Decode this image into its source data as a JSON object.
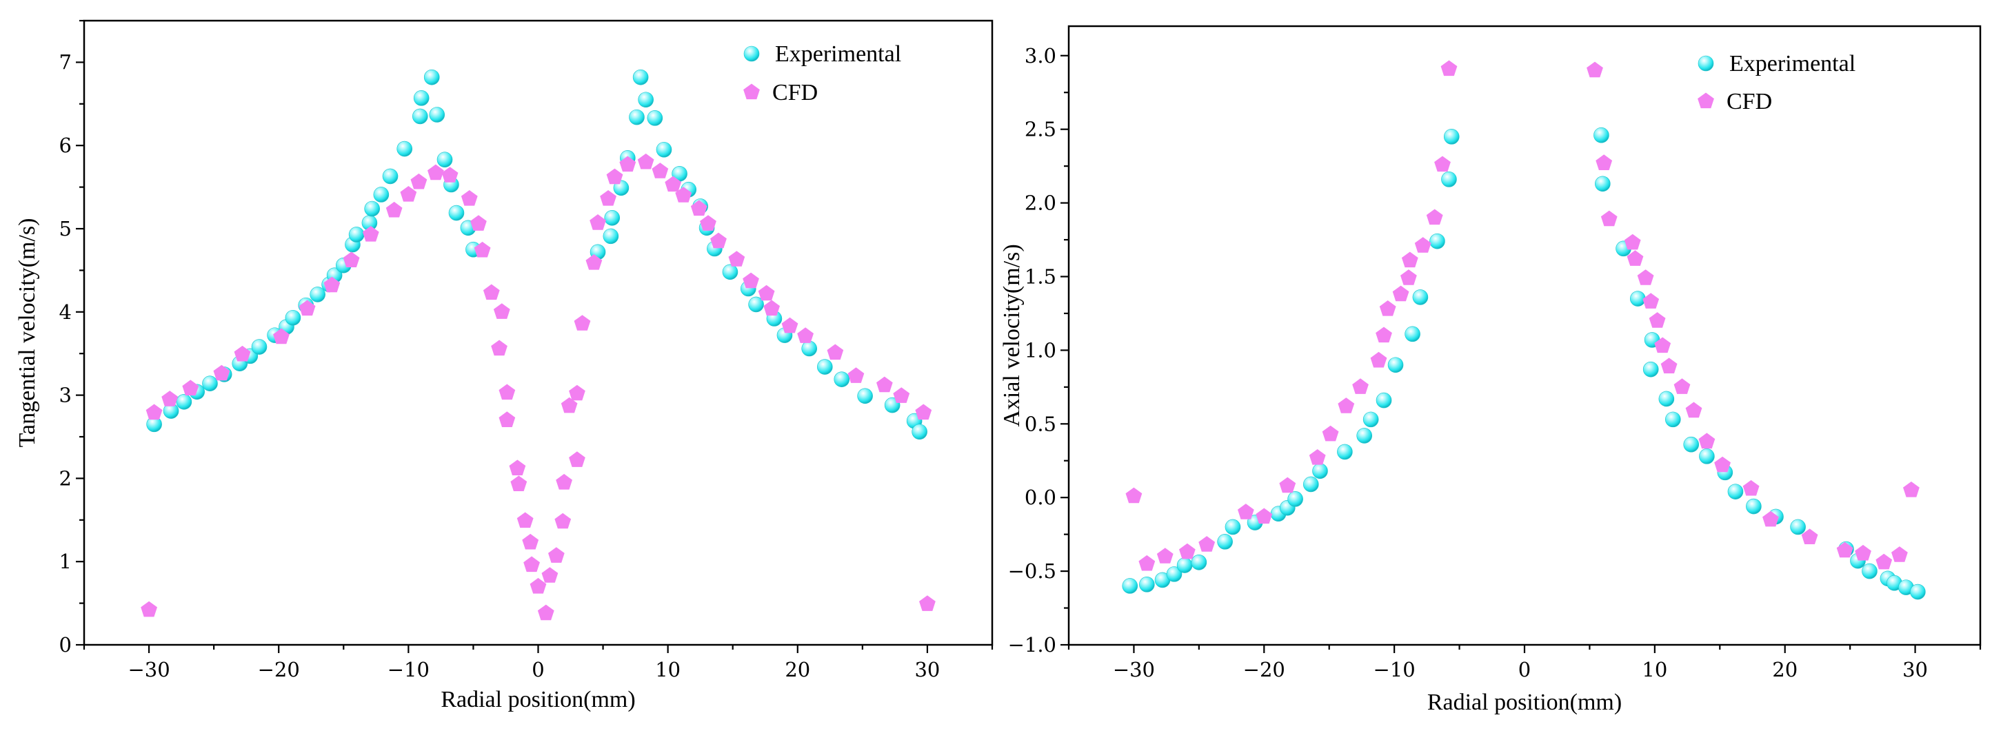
{
  "colors": {
    "experimental": "#29e6ee",
    "cfd": "#f27ff0",
    "axis": "#000000"
  },
  "chart_data": [
    {
      "type": "scatter",
      "xlabel": "Radial position(mm)",
      "ylabel": "Tangential velocity(m/s)",
      "xlim": [
        -35,
        35
      ],
      "ylim": [
        0,
        7.5
      ],
      "xticks": [
        -30,
        -20,
        -10,
        0,
        10,
        20,
        30
      ],
      "xtick_labels": [
        "−30",
        "−20",
        "−10",
        "0",
        "10",
        "20",
        "30"
      ],
      "yticks": [
        0,
        1,
        2,
        3,
        4,
        5,
        6,
        7
      ],
      "ytick_labels": [
        "0",
        "1",
        "2",
        "3",
        "4",
        "5",
        "6",
        "7"
      ],
      "legend_position": "top-right",
      "series": [
        {
          "name": "Experimental",
          "marker": "sphere",
          "points": [
            [
              -29.6,
              2.65
            ],
            [
              -28.3,
              2.81
            ],
            [
              -27.3,
              2.92
            ],
            [
              -26.3,
              3.04
            ],
            [
              -25.3,
              3.14
            ],
            [
              -24.2,
              3.25
            ],
            [
              -23.0,
              3.38
            ],
            [
              -22.2,
              3.47
            ],
            [
              -21.5,
              3.58
            ],
            [
              -20.3,
              3.72
            ],
            [
              -19.4,
              3.82
            ],
            [
              -18.9,
              3.93
            ],
            [
              -17.9,
              4.08
            ],
            [
              -17.0,
              4.21
            ],
            [
              -16.1,
              4.33
            ],
            [
              -15.7,
              4.44
            ],
            [
              -15.0,
              4.56
            ],
            [
              -14.3,
              4.81
            ],
            [
              -14.0,
              4.93
            ],
            [
              -13.0,
              5.07
            ],
            [
              -12.8,
              5.24
            ],
            [
              -12.1,
              5.41
            ],
            [
              -11.4,
              5.63
            ],
            [
              -10.3,
              5.96
            ],
            [
              -9.1,
              6.35
            ],
            [
              -9.0,
              6.57
            ],
            [
              -8.2,
              6.82
            ],
            [
              -7.8,
              6.37
            ],
            [
              -7.2,
              5.83
            ],
            [
              -6.7,
              5.53
            ],
            [
              -6.3,
              5.19
            ],
            [
              -5.4,
              5.01
            ],
            [
              -5.0,
              4.75
            ],
            [
              4.6,
              4.72
            ],
            [
              5.6,
              4.91
            ],
            [
              5.7,
              5.13
            ],
            [
              6.4,
              5.49
            ],
            [
              6.9,
              5.85
            ],
            [
              7.6,
              6.34
            ],
            [
              7.9,
              6.82
            ],
            [
              8.3,
              6.55
            ],
            [
              9.0,
              6.33
            ],
            [
              9.7,
              5.95
            ],
            [
              10.9,
              5.66
            ],
            [
              11.6,
              5.47
            ],
            [
              12.5,
              5.27
            ],
            [
              13.0,
              5.01
            ],
            [
              13.6,
              4.76
            ],
            [
              14.8,
              4.48
            ],
            [
              16.2,
              4.28
            ],
            [
              16.8,
              4.09
            ],
            [
              18.2,
              3.92
            ],
            [
              19.0,
              3.72
            ],
            [
              20.9,
              3.56
            ],
            [
              22.1,
              3.34
            ],
            [
              23.4,
              3.19
            ],
            [
              25.2,
              2.99
            ],
            [
              27.3,
              2.88
            ],
            [
              29.0,
              2.69
            ],
            [
              29.4,
              2.56
            ]
          ]
        },
        {
          "name": "CFD",
          "marker": "pentagon",
          "points": [
            [
              -30.0,
              0.42
            ],
            [
              -29.6,
              2.79
            ],
            [
              -28.4,
              2.95
            ],
            [
              -26.8,
              3.08
            ],
            [
              -24.4,
              3.26
            ],
            [
              -22.8,
              3.49
            ],
            [
              -19.8,
              3.7
            ],
            [
              -17.8,
              4.04
            ],
            [
              -15.9,
              4.32
            ],
            [
              -14.4,
              4.62
            ],
            [
              -12.9,
              4.93
            ],
            [
              -11.1,
              5.22
            ],
            [
              -10.0,
              5.41
            ],
            [
              -9.2,
              5.56
            ],
            [
              -7.9,
              5.67
            ],
            [
              -6.8,
              5.64
            ],
            [
              -5.3,
              5.36
            ],
            [
              -4.6,
              5.06
            ],
            [
              -4.3,
              4.74
            ],
            [
              -3.6,
              4.23
            ],
            [
              -2.8,
              4.0
            ],
            [
              -3.0,
              3.56
            ],
            [
              -2.4,
              3.03
            ],
            [
              -2.4,
              2.7
            ],
            [
              -1.6,
              2.12
            ],
            [
              -1.5,
              1.93
            ],
            [
              -1.0,
              1.49
            ],
            [
              -0.6,
              1.23
            ],
            [
              -0.5,
              0.96
            ],
            [
              0.0,
              0.7
            ],
            [
              0.6,
              0.38
            ],
            [
              0.9,
              0.83
            ],
            [
              1.4,
              1.07
            ],
            [
              1.9,
              1.48
            ],
            [
              2.0,
              1.95
            ],
            [
              2.4,
              2.87
            ],
            [
              3.0,
              3.02
            ],
            [
              3.0,
              2.22
            ],
            [
              3.4,
              3.86
            ],
            [
              4.3,
              4.59
            ],
            [
              4.6,
              5.07
            ],
            [
              5.4,
              5.36
            ],
            [
              5.9,
              5.62
            ],
            [
              6.9,
              5.77
            ],
            [
              8.3,
              5.8
            ],
            [
              9.4,
              5.69
            ],
            [
              10.4,
              5.53
            ],
            [
              11.2,
              5.4
            ],
            [
              12.4,
              5.24
            ],
            [
              13.1,
              5.06
            ],
            [
              13.9,
              4.85
            ],
            [
              15.3,
              4.63
            ],
            [
              16.4,
              4.37
            ],
            [
              17.6,
              4.22
            ],
            [
              18.0,
              4.04
            ],
            [
              19.4,
              3.83
            ],
            [
              20.6,
              3.71
            ],
            [
              22.9,
              3.51
            ],
            [
              24.5,
              3.23
            ],
            [
              26.7,
              3.12
            ],
            [
              28.0,
              2.99
            ],
            [
              29.7,
              2.79
            ],
            [
              30.0,
              0.49
            ]
          ]
        }
      ]
    },
    {
      "type": "scatter",
      "xlabel": "Radial position(mm)",
      "ylabel": "Axial velocity(m/s)",
      "xlim": [
        -35,
        35
      ],
      "ylim": [
        -1.0,
        3.2
      ],
      "xticks": [
        -30,
        -20,
        -10,
        0,
        10,
        20,
        30
      ],
      "xtick_labels": [
        "−30",
        "−20",
        "−10",
        "0",
        "10",
        "20",
        "30"
      ],
      "yticks": [
        -1.0,
        -0.5,
        0.0,
        0.5,
        1.0,
        1.5,
        2.0,
        2.5,
        3.0
      ],
      "ytick_labels": [
        "−1.0",
        "−0.5",
        "0.0",
        "0.5",
        "1.0",
        "1.5",
        "2.0",
        "2.5",
        "3.0"
      ],
      "legend_position": "top-right",
      "series": [
        {
          "name": "Experimental",
          "marker": "sphere",
          "points": [
            [
              -30.3,
              -0.6
            ],
            [
              -29.0,
              -0.59
            ],
            [
              -27.8,
              -0.56
            ],
            [
              -26.9,
              -0.52
            ],
            [
              -26.1,
              -0.46
            ],
            [
              -25.0,
              -0.44
            ],
            [
              -23.0,
              -0.3
            ],
            [
              -22.4,
              -0.2
            ],
            [
              -20.7,
              -0.17
            ],
            [
              -18.9,
              -0.11
            ],
            [
              -18.2,
              -0.07
            ],
            [
              -17.6,
              -0.01
            ],
            [
              -16.4,
              0.09
            ],
            [
              -15.7,
              0.18
            ],
            [
              -13.8,
              0.31
            ],
            [
              -12.3,
              0.42
            ],
            [
              -11.8,
              0.53
            ],
            [
              -10.8,
              0.66
            ],
            [
              -9.9,
              0.9
            ],
            [
              -8.6,
              1.11
            ],
            [
              -8.0,
              1.36
            ],
            [
              -6.7,
              1.74
            ],
            [
              -5.8,
              2.16
            ],
            [
              -5.6,
              2.45
            ],
            [
              5.9,
              2.46
            ],
            [
              6.0,
              2.13
            ],
            [
              7.6,
              1.69
            ],
            [
              8.7,
              1.35
            ],
            [
              9.8,
              1.07
            ],
            [
              9.7,
              0.87
            ],
            [
              10.9,
              0.67
            ],
            [
              11.4,
              0.53
            ],
            [
              12.8,
              0.36
            ],
            [
              14.0,
              0.28
            ],
            [
              15.4,
              0.17
            ],
            [
              16.2,
              0.04
            ],
            [
              17.6,
              -0.06
            ],
            [
              19.3,
              -0.13
            ],
            [
              21.0,
              -0.2
            ],
            [
              24.7,
              -0.35
            ],
            [
              25.6,
              -0.43
            ],
            [
              26.5,
              -0.5
            ],
            [
              27.9,
              -0.55
            ],
            [
              28.4,
              -0.58
            ],
            [
              29.3,
              -0.61
            ],
            [
              30.2,
              -0.64
            ]
          ]
        },
        {
          "name": "CFD",
          "marker": "pentagon",
          "points": [
            [
              -30.0,
              0.01
            ],
            [
              -29.0,
              -0.45
            ],
            [
              -27.6,
              -0.4
            ],
            [
              -25.9,
              -0.37
            ],
            [
              -24.4,
              -0.32
            ],
            [
              -21.4,
              -0.1
            ],
            [
              -20.0,
              -0.13
            ],
            [
              -18.2,
              0.08
            ],
            [
              -15.9,
              0.27
            ],
            [
              -14.9,
              0.43
            ],
            [
              -13.7,
              0.62
            ],
            [
              -12.6,
              0.75
            ],
            [
              -11.2,
              0.93
            ],
            [
              -10.8,
              1.1
            ],
            [
              -10.5,
              1.28
            ],
            [
              -9.5,
              1.38
            ],
            [
              -8.9,
              1.49
            ],
            [
              -8.8,
              1.61
            ],
            [
              -7.8,
              1.71
            ],
            [
              -6.9,
              1.9
            ],
            [
              -6.3,
              2.26
            ],
            [
              -5.8,
              2.91
            ],
            [
              5.4,
              2.9
            ],
            [
              6.1,
              2.27
            ],
            [
              6.5,
              1.89
            ],
            [
              8.3,
              1.73
            ],
            [
              8.5,
              1.62
            ],
            [
              9.3,
              1.49
            ],
            [
              9.7,
              1.33
            ],
            [
              10.2,
              1.2
            ],
            [
              10.6,
              1.03
            ],
            [
              11.1,
              0.89
            ],
            [
              12.1,
              0.75
            ],
            [
              13.0,
              0.59
            ],
            [
              14.0,
              0.38
            ],
            [
              15.2,
              0.22
            ],
            [
              17.4,
              0.06
            ],
            [
              18.9,
              -0.15
            ],
            [
              21.9,
              -0.27
            ],
            [
              24.6,
              -0.36
            ],
            [
              26.0,
              -0.38
            ],
            [
              27.6,
              -0.44
            ],
            [
              28.8,
              -0.39
            ],
            [
              29.7,
              0.05
            ]
          ]
        }
      ]
    }
  ]
}
